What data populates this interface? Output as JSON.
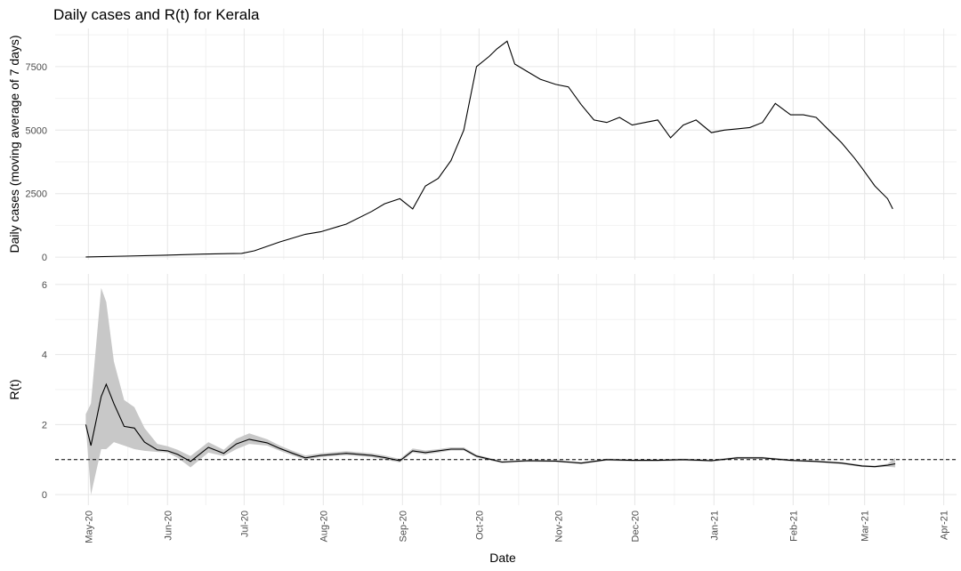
{
  "chart_data": {
    "type": "line",
    "title": "Daily cases and R(t) for Kerala",
    "xlabel": "Date",
    "x_tick_labels": [
      "May-20",
      "Jun-20",
      "Jul-20",
      "Aug-20",
      "Sep-20",
      "Oct-20",
      "Nov-20",
      "Dec-20",
      "Jan-21",
      "Feb-21",
      "Mar-21",
      "Apr-21"
    ],
    "x_tick_dates": [
      "2020-05-01",
      "2020-06-01",
      "2020-07-01",
      "2020-08-01",
      "2020-09-01",
      "2020-10-01",
      "2020-11-01",
      "2020-12-01",
      "2021-01-01",
      "2021-02-01",
      "2021-03-01",
      "2021-04-01"
    ],
    "xlim": [
      "2020-04-18",
      "2021-04-06"
    ],
    "panels": [
      {
        "ylabel": "Daily cases (moving average of 7 days)",
        "ylim": [
          -100,
          9000
        ],
        "y_ticks": [
          0,
          2500,
          5000,
          7500
        ],
        "y_tick_labels": [
          "0",
          "2500",
          "5000",
          "7500"
        ],
        "series": {
          "x": [
            "2020-04-30",
            "2020-05-15",
            "2020-05-31",
            "2020-06-15",
            "2020-06-30",
            "2020-07-05",
            "2020-07-15",
            "2020-07-25",
            "2020-07-31",
            "2020-08-10",
            "2020-08-20",
            "2020-08-25",
            "2020-08-31",
            "2020-09-05",
            "2020-09-10",
            "2020-09-15",
            "2020-09-20",
            "2020-09-25",
            "2020-09-30",
            "2020-10-05",
            "2020-10-08",
            "2020-10-12",
            "2020-10-15",
            "2020-10-20",
            "2020-10-25",
            "2020-10-31",
            "2020-11-05",
            "2020-11-10",
            "2020-11-15",
            "2020-11-20",
            "2020-11-25",
            "2020-11-30",
            "2020-12-05",
            "2020-12-10",
            "2020-12-15",
            "2020-12-20",
            "2020-12-25",
            "2020-12-31",
            "2021-01-05",
            "2021-01-10",
            "2021-01-15",
            "2021-01-20",
            "2021-01-25",
            "2021-01-31",
            "2021-02-05",
            "2021-02-10",
            "2021-02-15",
            "2021-02-20",
            "2021-02-25",
            "2021-02-28",
            "2021-03-05",
            "2021-03-10",
            "2021-03-12"
          ],
          "y": [
            10,
            40,
            80,
            120,
            150,
            250,
            600,
            900,
            1000,
            1300,
            1800,
            2100,
            2300,
            1900,
            2800,
            3100,
            3800,
            5000,
            7500,
            7900,
            8200,
            8500,
            7600,
            7300,
            7000,
            6800,
            6700,
            6000,
            5400,
            5300,
            5500,
            5200,
            5300,
            5400,
            4700,
            5200,
            5400,
            4900,
            5000,
            5050,
            5100,
            5300,
            6050,
            5600,
            5600,
            5500,
            5000,
            4500,
            3900,
            3500,
            2800,
            2300,
            1900
          ]
        }
      },
      {
        "ylabel": "R(t)",
        "ylim": [
          -0.3,
          6.3
        ],
        "y_ticks": [
          0,
          2,
          4,
          6
        ],
        "y_tick_labels": [
          "0",
          "2",
          "4",
          "6"
        ],
        "reference_line": 1,
        "series": {
          "x": [
            "2020-04-30",
            "2020-05-02",
            "2020-05-06",
            "2020-05-08",
            "2020-05-11",
            "2020-05-15",
            "2020-05-19",
            "2020-05-23",
            "2020-05-28",
            "2020-06-01",
            "2020-06-05",
            "2020-06-10",
            "2020-06-17",
            "2020-06-23",
            "2020-06-28",
            "2020-07-03",
            "2020-07-10",
            "2020-07-15",
            "2020-07-20",
            "2020-07-25",
            "2020-07-31",
            "2020-08-10",
            "2020-08-20",
            "2020-08-25",
            "2020-08-31",
            "2020-09-05",
            "2020-09-10",
            "2020-09-15",
            "2020-09-20",
            "2020-09-25",
            "2020-09-30",
            "2020-10-10",
            "2020-10-20",
            "2020-10-31",
            "2020-11-10",
            "2020-11-20",
            "2020-11-30",
            "2020-12-10",
            "2020-12-20",
            "2020-12-31",
            "2021-01-10",
            "2021-01-20",
            "2021-01-31",
            "2021-02-10",
            "2021-02-20",
            "2021-02-28",
            "2021-03-05",
            "2021-03-10",
            "2021-03-13"
          ],
          "y": [
            2.0,
            1.4,
            2.8,
            3.15,
            2.6,
            1.95,
            1.9,
            1.5,
            1.28,
            1.25,
            1.15,
            0.95,
            1.35,
            1.18,
            1.45,
            1.58,
            1.48,
            1.32,
            1.18,
            1.05,
            1.12,
            1.18,
            1.12,
            1.06,
            0.97,
            1.25,
            1.2,
            1.25,
            1.3,
            1.3,
            1.1,
            0.93,
            0.97,
            0.96,
            0.9,
            1.0,
            0.98,
            0.98,
            1.0,
            0.97,
            1.05,
            1.05,
            0.98,
            0.95,
            0.9,
            0.82,
            0.8,
            0.84,
            0.88
          ],
          "lower": [
            2.0,
            0.0,
            1.3,
            1.3,
            1.5,
            1.4,
            1.3,
            1.25,
            1.22,
            1.2,
            1.05,
            0.78,
            1.2,
            1.1,
            1.3,
            1.45,
            1.4,
            1.25,
            1.12,
            1.0,
            1.07,
            1.13,
            1.07,
            1.0,
            0.92,
            1.2,
            1.15,
            1.2,
            1.26,
            1.26,
            1.06,
            0.9,
            0.94,
            0.93,
            0.87,
            0.97,
            0.95,
            0.95,
            0.97,
            0.94,
            1.02,
            1.02,
            0.95,
            0.92,
            0.87,
            0.79,
            0.77,
            0.8,
            0.78
          ],
          "upper": [
            2.3,
            2.6,
            5.9,
            5.5,
            3.8,
            2.7,
            2.5,
            1.9,
            1.45,
            1.38,
            1.28,
            1.1,
            1.5,
            1.28,
            1.6,
            1.75,
            1.58,
            1.4,
            1.25,
            1.12,
            1.18,
            1.24,
            1.18,
            1.12,
            1.02,
            1.32,
            1.26,
            1.3,
            1.35,
            1.35,
            1.14,
            0.96,
            1.0,
            0.99,
            0.93,
            1.03,
            1.01,
            1.01,
            1.03,
            1.0,
            1.08,
            1.08,
            1.01,
            0.98,
            0.93,
            0.85,
            0.83,
            0.88,
            1.05
          ]
        }
      }
    ]
  }
}
